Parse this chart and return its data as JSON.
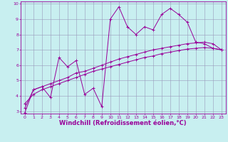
{
  "title": "",
  "xlabel": "Windchill (Refroidissement éolien,°C)",
  "ylabel": "",
  "xlim": [
    -0.5,
    23.5
  ],
  "ylim": [
    2.85,
    10.15
  ],
  "xticks": [
    0,
    1,
    2,
    3,
    4,
    5,
    6,
    7,
    8,
    9,
    10,
    11,
    12,
    13,
    14,
    15,
    16,
    17,
    18,
    19,
    20,
    21,
    22,
    23
  ],
  "yticks": [
    3,
    4,
    5,
    6,
    7,
    8,
    9,
    10
  ],
  "bg_color": "#c8eff0",
  "grid_color": "#9999bb",
  "line_color": "#990099",
  "line1_x": [
    0,
    1,
    2,
    3,
    4,
    5,
    6,
    7,
    8,
    9,
    10,
    11,
    12,
    13,
    14,
    15,
    16,
    17,
    18,
    19,
    20,
    21,
    22,
    23
  ],
  "line1_y": [
    2.9,
    4.4,
    4.6,
    3.9,
    6.5,
    5.9,
    6.3,
    4.1,
    4.5,
    3.3,
    9.0,
    9.8,
    8.5,
    8.0,
    8.5,
    8.3,
    9.3,
    9.7,
    9.3,
    8.8,
    7.5,
    7.4,
    7.1,
    7.0
  ],
  "line2_x": [
    0,
    1,
    2,
    3,
    4,
    5,
    6,
    7,
    8,
    9,
    10,
    11,
    12,
    13,
    14,
    15,
    16,
    17,
    18,
    19,
    20,
    21,
    22,
    23
  ],
  "line2_y": [
    3.2,
    4.4,
    4.6,
    4.8,
    5.0,
    5.2,
    5.5,
    5.6,
    5.8,
    6.0,
    6.2,
    6.4,
    6.55,
    6.7,
    6.85,
    7.0,
    7.1,
    7.2,
    7.3,
    7.4,
    7.45,
    7.5,
    7.4,
    7.0
  ],
  "line3_x": [
    0,
    1,
    2,
    3,
    4,
    5,
    6,
    7,
    8,
    9,
    10,
    11,
    12,
    13,
    14,
    15,
    16,
    17,
    18,
    19,
    20,
    21,
    22,
    23
  ],
  "line3_y": [
    3.5,
    4.1,
    4.4,
    4.6,
    4.8,
    5.0,
    5.2,
    5.4,
    5.6,
    5.75,
    5.9,
    6.05,
    6.2,
    6.35,
    6.5,
    6.6,
    6.75,
    6.85,
    6.95,
    7.05,
    7.1,
    7.15,
    7.1,
    7.0
  ],
  "tick_fontsize": 4.5,
  "xlabel_fontsize": 6.0,
  "marker_size": 2.5,
  "linewidth": 0.7
}
